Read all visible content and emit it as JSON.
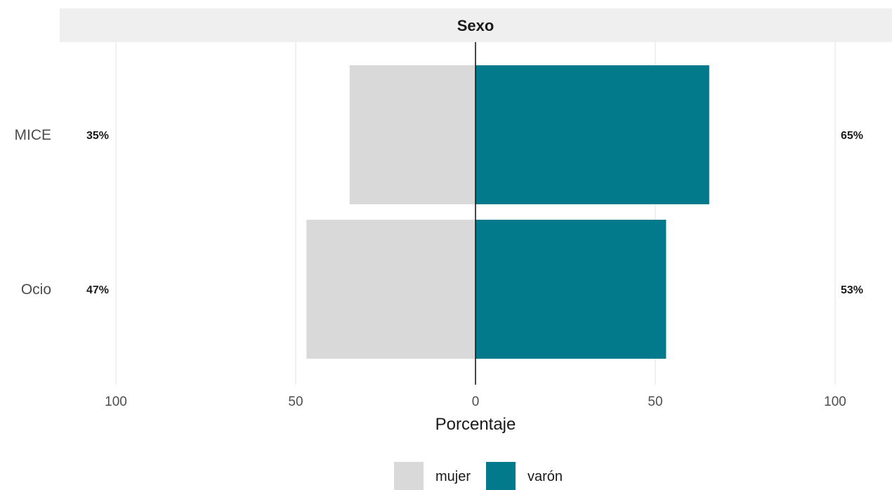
{
  "chart_data": {
    "type": "bar",
    "orientation": "horizontal-diverging",
    "facet_title": "Sexo",
    "xlabel": "Porcentaje",
    "ylabel": "",
    "xlim": [
      -100,
      100
    ],
    "x_ticks": [
      {
        "value": -100,
        "label": "100"
      },
      {
        "value": -50,
        "label": "50"
      },
      {
        "value": 0,
        "label": "0"
      },
      {
        "value": 50,
        "label": "50"
      },
      {
        "value": 100,
        "label": "100"
      }
    ],
    "categories": [
      "MICE",
      "Ocio"
    ],
    "series": [
      {
        "name": "mujer",
        "side": "left",
        "color": "#d9d9d9",
        "values": [
          35,
          47
        ],
        "labels": [
          "35%",
          "47%"
        ]
      },
      {
        "name": "varón",
        "side": "right",
        "color": "#037a8b",
        "values": [
          65,
          53
        ],
        "labels": [
          "65%",
          "53%"
        ]
      }
    ],
    "grid": true,
    "legend_position": "bottom"
  }
}
